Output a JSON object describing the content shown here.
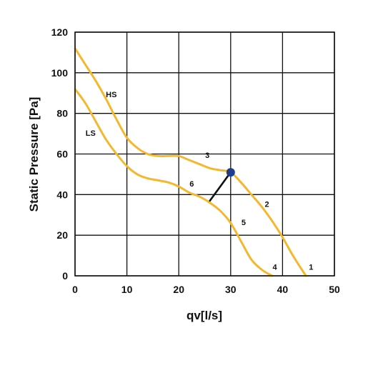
{
  "chart_data": {
    "type": "line",
    "title": "",
    "xlabel": "qv[l/s]",
    "ylabel": "Static Pressure [Pa]",
    "xlim": [
      0,
      50
    ],
    "ylim": [
      0,
      120
    ],
    "xticks": [
      "0",
      "10",
      "20",
      "30",
      "40",
      "50"
    ],
    "yticks": [
      "0",
      "20",
      "40",
      "60",
      "80",
      "100",
      "120"
    ],
    "grid": true,
    "curve_color": "#f2b830",
    "series": [
      {
        "name": "HS",
        "x": [
          0,
          2,
          4,
          6,
          8,
          10,
          12,
          14,
          16,
          18,
          20,
          22,
          24,
          26,
          28,
          30,
          32,
          34,
          36,
          38,
          40,
          42,
          44.5
        ],
        "y": [
          112,
          104,
          96,
          87,
          77,
          68,
          63,
          60,
          59,
          59,
          59,
          57,
          55,
          53,
          52,
          51,
          46,
          40,
          34,
          27,
          19,
          10,
          0
        ]
      },
      {
        "name": "LS",
        "x": [
          0,
          2,
          4,
          6,
          8,
          10,
          12,
          14,
          16,
          18,
          20,
          22,
          24,
          26,
          28,
          30,
          32,
          34,
          36,
          38
        ],
        "y": [
          92,
          85,
          76,
          67,
          60,
          54,
          50,
          48,
          47,
          46,
          44,
          41,
          39,
          36,
          32,
          26,
          17,
          8,
          3,
          0
        ]
      }
    ],
    "curve_labels": [
      {
        "text": "HS",
        "x": 7,
        "y": 88
      },
      {
        "text": "LS",
        "x": 3,
        "y": 69
      },
      {
        "text": "1",
        "x": 45.5,
        "y": 3
      },
      {
        "text": "2",
        "x": 37,
        "y": 34
      },
      {
        "text": "3",
        "x": 25.5,
        "y": 58
      },
      {
        "text": "4",
        "x": 38.5,
        "y": 3
      },
      {
        "text": "5",
        "x": 32.5,
        "y": 25
      },
      {
        "text": "6",
        "x": 22.5,
        "y": 44
      }
    ],
    "operating_line": {
      "x": [
        26,
        30
      ],
      "y": [
        37,
        51
      ]
    },
    "operating_point": {
      "x": 30,
      "y": 51,
      "color": "#1f3d8f"
    }
  }
}
